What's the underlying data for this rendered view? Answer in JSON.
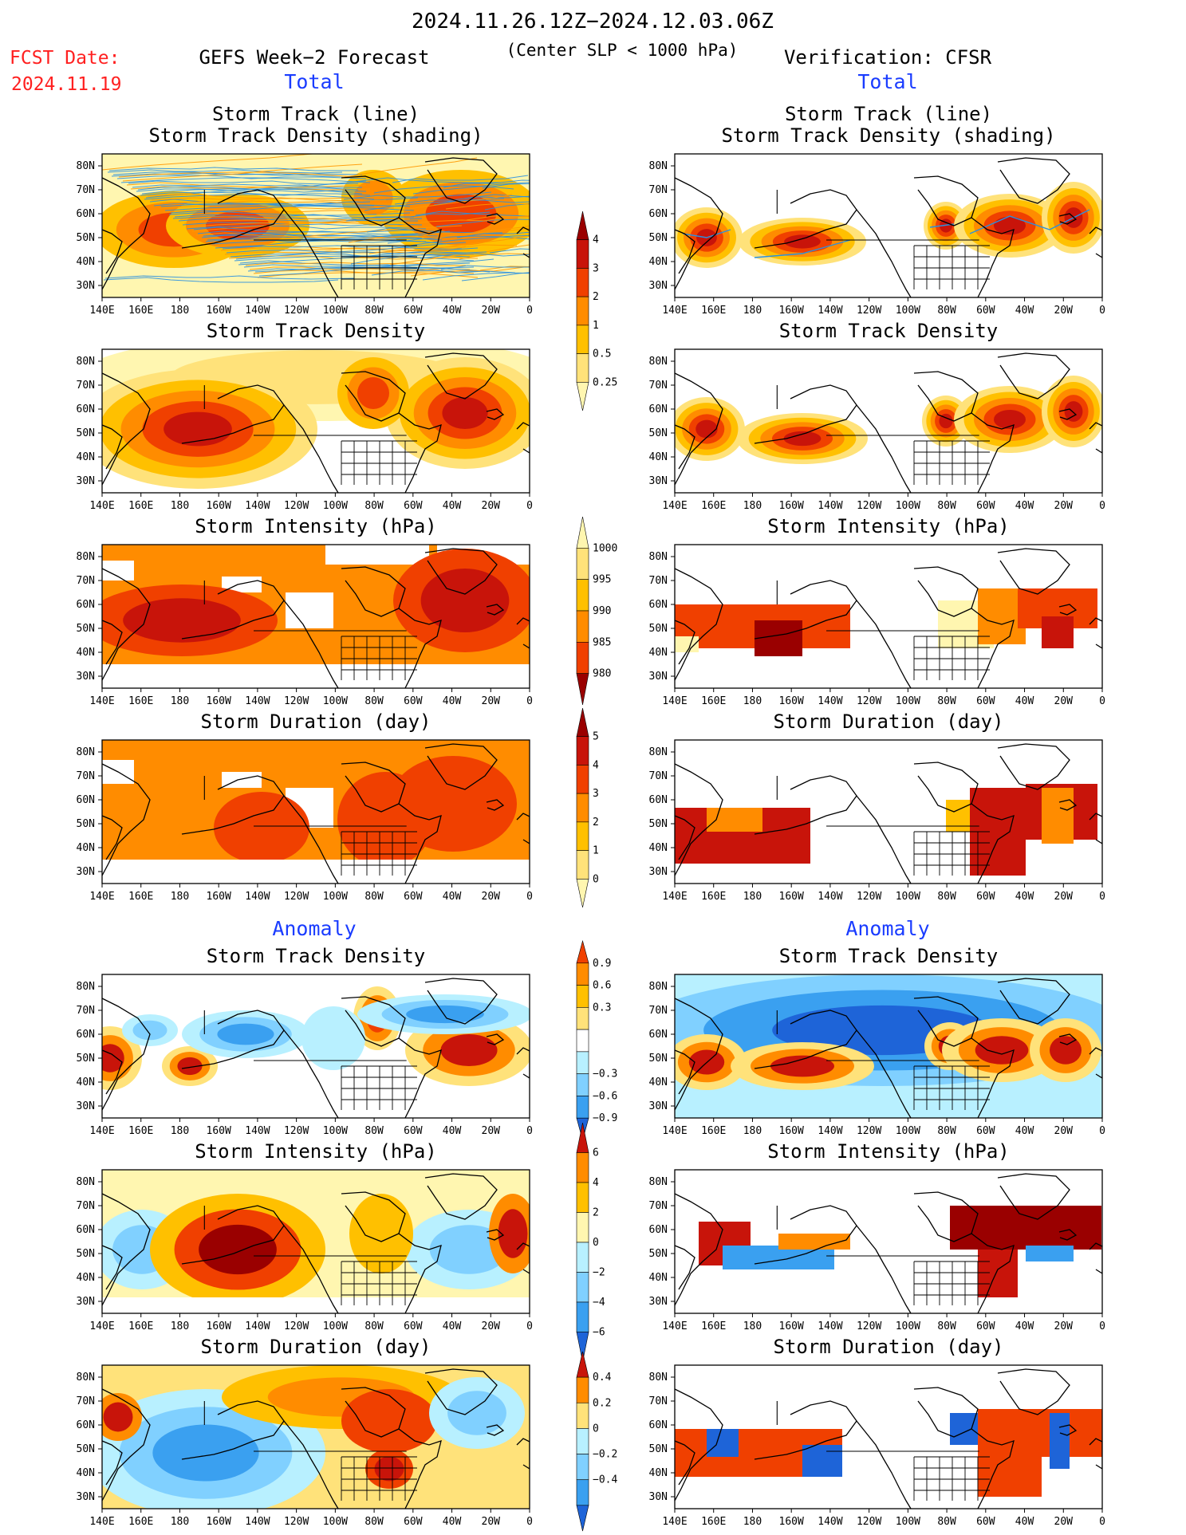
{
  "header": {
    "date_range": "2024.11.26.12Z−2024.12.03.06Z",
    "criterion": "(Center SLP < 1000 hPa)",
    "fcst_label": "FCST Date:",
    "fcst_date": "2024.11.19",
    "left_title": "GEFS Week−2 Forecast",
    "right_title": "Verification: CFSR",
    "total_label": "Total",
    "anomaly_label": "Anomaly"
  },
  "panel_titles": {
    "track_line": "Storm Track (line)",
    "track_density_shading": "Storm Track Density (shading)",
    "track_density": "Storm Track Density",
    "intensity": "Storm Intensity (hPa)",
    "duration": "Storm Duration (day)"
  },
  "axes": {
    "lon_labels": [
      "140E",
      "160E",
      "180",
      "160W",
      "140W",
      "120W",
      "100W",
      "80W",
      "60W",
      "40W",
      "20W",
      "0"
    ],
    "lat_labels": [
      "80N",
      "70N",
      "60N",
      "50N",
      "40N",
      "30N"
    ]
  },
  "colorbars": {
    "density_total": [
      "0.25",
      "0.5",
      "1",
      "2",
      "3",
      "4"
    ],
    "intensity_total": [
      "1000",
      "995",
      "990",
      "985",
      "980"
    ],
    "duration_total": [
      "0",
      "1",
      "2",
      "3",
      "4",
      "5"
    ],
    "density_anom": [
      "0.9",
      "0.6",
      "0.3",
      "−0.3",
      "−0.6",
      "−0.9"
    ],
    "intensity_anom": [
      "6",
      "4",
      "2",
      "0",
      "−2",
      "−4",
      "−6"
    ],
    "duration_anom": [
      "0.4",
      "0.2",
      "0",
      "−0.2",
      "−0.4"
    ]
  },
  "colors": {
    "title_red": "#ff2020",
    "label_blue": "#1a3cff",
    "warm": [
      "#fff6b0",
      "#ffe27a",
      "#ffc000",
      "#ff8c00",
      "#f04000",
      "#c8140a",
      "#9a0000"
    ],
    "cool": [
      "#b8f0ff",
      "#80d0ff",
      "#3aa0f0",
      "#1e64d8"
    ],
    "track_blue": "#2a90e0",
    "track_orange": "#ff9800"
  }
}
